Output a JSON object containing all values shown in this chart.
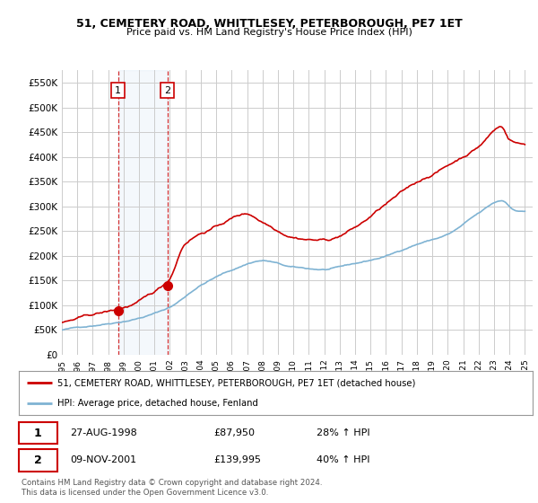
{
  "title": "51, CEMETERY ROAD, WHITTLESEY, PETERBOROUGH, PE7 1ET",
  "subtitle": "Price paid vs. HM Land Registry's House Price Index (HPI)",
  "ylim": [
    0,
    575000
  ],
  "yticks": [
    0,
    50000,
    100000,
    150000,
    200000,
    250000,
    300000,
    350000,
    400000,
    450000,
    500000,
    550000
  ],
  "ytick_labels": [
    "£0",
    "£50K",
    "£100K",
    "£150K",
    "£200K",
    "£250K",
    "£300K",
    "£350K",
    "£400K",
    "£450K",
    "£500K",
    "£550K"
  ],
  "xlim_start": 1995.0,
  "xlim_end": 2025.5,
  "red_line_color": "#cc0000",
  "blue_line_color": "#7fb3d3",
  "marker1_x": 1998.65,
  "marker1_y": 87950,
  "marker2_x": 2001.85,
  "marker2_y": 139995,
  "marker1_date": "27-AUG-1998",
  "marker1_price": "£87,950",
  "marker1_hpi": "28% ↑ HPI",
  "marker2_date": "09-NOV-2001",
  "marker2_price": "£139,995",
  "marker2_hpi": "40% ↑ HPI",
  "legend_red": "51, CEMETERY ROAD, WHITTLESEY, PETERBOROUGH, PE7 1ET (detached house)",
  "legend_blue": "HPI: Average price, detached house, Fenland",
  "footer": "Contains HM Land Registry data © Crown copyright and database right 2024.\nThis data is licensed under the Open Government Licence v3.0.",
  "shaded_x1": 1998.65,
  "shaded_x2": 2001.85,
  "background_color": "#ffffff",
  "plot_bg_color": "#ffffff",
  "grid_color": "#cccccc"
}
